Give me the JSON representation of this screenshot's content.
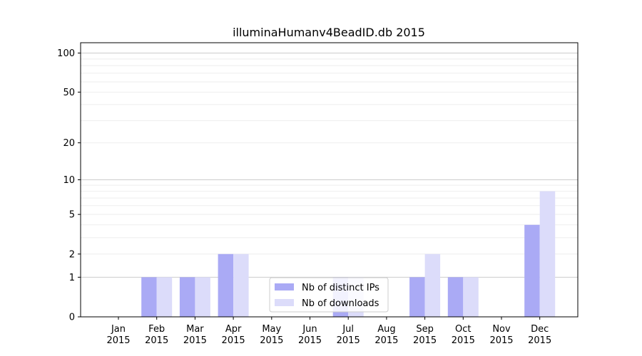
{
  "chart_data": {
    "type": "bar",
    "title": "illuminaHumanv4BeadID.db 2015",
    "xlabel": "",
    "ylabel": "",
    "categories": [
      [
        "Jan",
        "2015"
      ],
      [
        "Feb",
        "2015"
      ],
      [
        "Mar",
        "2015"
      ],
      [
        "Apr",
        "2015"
      ],
      [
        "May",
        "2015"
      ],
      [
        "Jun",
        "2015"
      ],
      [
        "Jul",
        "2015"
      ],
      [
        "Aug",
        "2015"
      ],
      [
        "Sep",
        "2015"
      ],
      [
        "Oct",
        "2015"
      ],
      [
        "Nov",
        "2015"
      ],
      [
        "Dec",
        "2015"
      ]
    ],
    "series": [
      {
        "name": "Nb of distinct IPs",
        "color": "#aaaaf5",
        "values": [
          0,
          1,
          1,
          2,
          0,
          0,
          1,
          0,
          1,
          1,
          0,
          4
        ]
      },
      {
        "name": "Nb of downloads",
        "color": "#dcdcfa",
        "values": [
          0,
          1,
          1,
          2,
          0,
          0,
          1,
          0,
          2,
          1,
          0,
          8
        ]
      }
    ],
    "y_scale": "log(1+y)",
    "ylim": [
      0,
      120
    ],
    "y_ticks": [
      0,
      1,
      2,
      5,
      10,
      20,
      50,
      100
    ],
    "grid": "horizontal",
    "legend_position": "lower center"
  }
}
